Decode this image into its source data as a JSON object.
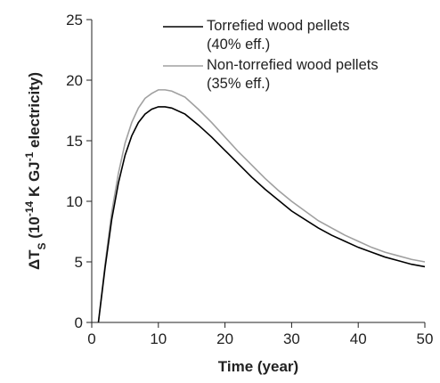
{
  "chart_data": {
    "type": "line",
    "x_label": "Time (year)",
    "y_label": [
      "ΔT",
      "S",
      " (10",
      "-14",
      " K GJ",
      "-1",
      " electricity)"
    ],
    "x": [
      1,
      2,
      3,
      4,
      5,
      6,
      7,
      8,
      9,
      10,
      11,
      12,
      14,
      16,
      18,
      20,
      22,
      24,
      26,
      28,
      30,
      32,
      34,
      36,
      38,
      40,
      42,
      44,
      46,
      48,
      50
    ],
    "series": [
      {
        "name": "Torrefied wood pellets\n(40% eff.)",
        "color": "#000000",
        "values": [
          0,
          4.5,
          8.5,
          11.5,
          13.8,
          15.4,
          16.5,
          17.2,
          17.6,
          17.8,
          17.8,
          17.7,
          17.2,
          16.3,
          15.3,
          14.2,
          13.1,
          12.0,
          11.0,
          10.1,
          9.2,
          8.5,
          7.8,
          7.2,
          6.7,
          6.2,
          5.8,
          5.4,
          5.1,
          4.8,
          4.6
        ]
      },
      {
        "name": "Non-torrefied wood pellets\n(35% eff.)",
        "color": "#a0a0a0",
        "values": [
          0,
          4.8,
          9.1,
          12.3,
          14.8,
          16.5,
          17.7,
          18.5,
          18.9,
          19.2,
          19.2,
          19.1,
          18.6,
          17.6,
          16.5,
          15.3,
          14.1,
          13.0,
          11.9,
          10.9,
          10.0,
          9.2,
          8.4,
          7.8,
          7.2,
          6.7,
          6.2,
          5.8,
          5.5,
          5.2,
          5.0
        ]
      }
    ],
    "xlim": [
      0,
      50
    ],
    "xticks": [
      0,
      10,
      20,
      30,
      40,
      50
    ],
    "ylim": [
      0,
      25
    ],
    "yticks": [
      0,
      5,
      10,
      15,
      20,
      25
    ],
    "legend": "upper right"
  }
}
